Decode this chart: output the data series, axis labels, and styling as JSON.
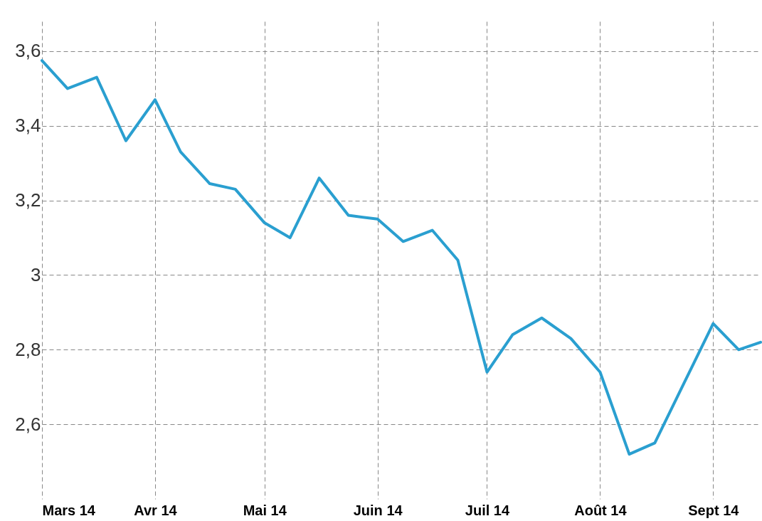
{
  "chart_data": {
    "type": "line",
    "x": [
      "2014-03-01",
      "2014-03-08",
      "2014-03-16",
      "2014-03-24",
      "2014-04-01",
      "2014-04-08",
      "2014-04-16",
      "2014-04-23",
      "2014-05-01",
      "2014-05-08",
      "2014-05-16",
      "2014-05-24",
      "2014-06-01",
      "2014-06-08",
      "2014-06-16",
      "2014-06-23",
      "2014-07-01",
      "2014-07-08",
      "2014-07-16",
      "2014-07-24",
      "2014-08-01",
      "2014-08-09",
      "2014-08-16",
      "2014-08-24",
      "2014-09-01",
      "2014-09-08",
      "2014-09-14"
    ],
    "series": [
      {
        "color": "#2a9fd0",
        "values": [
          3.575,
          3.5,
          3.53,
          3.36,
          3.47,
          3.33,
          3.245,
          3.23,
          3.14,
          3.1,
          3.26,
          3.16,
          3.15,
          3.09,
          3.12,
          3.04,
          2.74,
          2.84,
          2.885,
          2.83,
          2.74,
          2.52,
          2.55,
          2.71,
          2.87,
          2.8,
          2.82
        ]
      }
    ],
    "xlim": [
      "2014-03-01",
      "2014-09-14"
    ],
    "xticks": [
      {
        "value": "2014-03-01",
        "label": "Mars 14"
      },
      {
        "value": "2014-04-01",
        "label": "Avr 14"
      },
      {
        "value": "2014-05-01",
        "label": "Mai 14"
      },
      {
        "value": "2014-06-01",
        "label": "Juin 14"
      },
      {
        "value": "2014-07-01",
        "label": "Juil 14"
      },
      {
        "value": "2014-08-01",
        "label": "Août 14"
      },
      {
        "value": "2014-09-01",
        "label": "Sept 14"
      }
    ],
    "ylim": [
      2.4,
      3.68
    ],
    "yticks": [
      {
        "value": 2.6,
        "label": "2,6"
      },
      {
        "value": 2.8,
        "label": "2,8"
      },
      3,
      {
        "value": 3.2,
        "label": "3,2"
      },
      {
        "value": 3.4,
        "label": "3,4"
      },
      {
        "value": 3.6,
        "label": "3,6"
      }
    ],
    "grid": true,
    "marker": "none",
    "line_style": "solid"
  }
}
